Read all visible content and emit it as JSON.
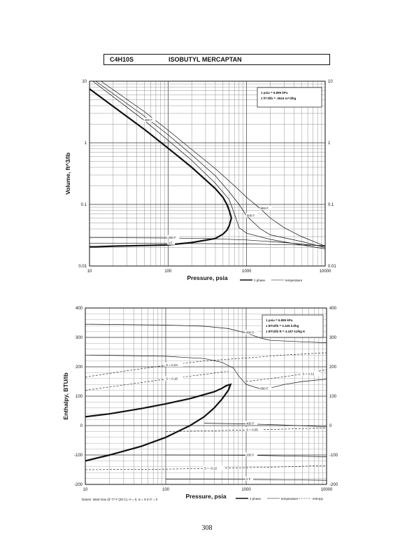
{
  "header": {
    "formula": "C4H10S",
    "name": "ISOBUTYL MERCAPTAN"
  },
  "page_number": "308",
  "footnote": "Datum: Ideal Gas @ 77 F (25 C), H = 0, S = S in F = 0",
  "legend": {
    "two_phase": "2 phase",
    "temperature": "temperature",
    "entropy": "entropy"
  },
  "chart_data": [
    {
      "type": "line",
      "xlabel": "Pressure, psia",
      "ylabel": "Volume, ft^3/lb",
      "x_scale": "log",
      "y_scale": "log",
      "xlim": [
        10,
        10000
      ],
      "ylim": [
        0.01,
        10
      ],
      "x_ticks": [
        "10",
        "100",
        "1000",
        "10000"
      ],
      "y_ticks": [
        "0.01",
        "0.1",
        "1",
        "10"
      ],
      "grid": true,
      "notes": [
        "1 psia = 6.895 kPa",
        "1 ft^3/lb = .0624 m^3/kg"
      ],
      "series": [
        {
          "name": "2 phase",
          "style": "bold",
          "x": [
            10,
            20,
            50,
            100,
            200,
            400,
            500,
            560,
            600,
            640,
            600,
            560,
            500,
            400,
            200,
            100,
            50,
            20,
            12,
            10
          ],
          "y": [
            7.5,
            3.9,
            1.65,
            0.82,
            0.4,
            0.18,
            0.13,
            0.1,
            0.08,
            0.06,
            0.045,
            0.038,
            0.033,
            0.028,
            0.024,
            0.022,
            0.0215,
            0.021,
            0.0205,
            0.0205
          ]
        },
        {
          "label": "800 F",
          "style": "thin",
          "x": [
            14,
            50,
            100,
            200,
            400,
            700,
            1000,
            1500,
            2000,
            3000,
            5000,
            10000
          ],
          "y": [
            10,
            3.2,
            1.6,
            0.78,
            0.38,
            0.2,
            0.13,
            0.085,
            0.06,
            0.042,
            0.03,
            0.021
          ]
        },
        {
          "label": "600 F",
          "style": "thin",
          "x": [
            12,
            50,
            100,
            200,
            400,
            600,
            800,
            1000,
            1500,
            2000,
            5000,
            10000
          ],
          "y": [
            10,
            2.7,
            1.35,
            0.64,
            0.29,
            0.16,
            0.1,
            0.065,
            0.04,
            0.032,
            0.025,
            0.02
          ]
        },
        {
          "label": "400 F",
          "style": "thin",
          "x": [
            11,
            50,
            100,
            200,
            400,
            600,
            700,
            800,
            1000,
            2000,
            5000,
            10000
          ],
          "y": [
            10,
            2.3,
            1.1,
            0.52,
            0.22,
            0.12,
            0.07,
            0.042,
            0.034,
            0.027,
            0.022,
            0.019
          ]
        },
        {
          "label": "200 F",
          "style": "thin",
          "x": [
            10,
            100,
            300,
            1000,
            3000,
            10000
          ],
          "y": [
            0.029,
            0.0285,
            0.028,
            0.0265,
            0.024,
            0.021
          ]
        },
        {
          "label": "0 F",
          "style": "thin",
          "x": [
            10,
            100,
            1000,
            10000
          ],
          "y": [
            0.0235,
            0.0233,
            0.0228,
            0.0215
          ]
        }
      ]
    },
    {
      "type": "line",
      "xlabel": "Pressure, psia",
      "ylabel": "Enthalpy, BTU/lb",
      "x_scale": "log",
      "y_scale": "linear",
      "xlim": [
        10,
        10000
      ],
      "ylim": [
        -200,
        400
      ],
      "x_ticks": [
        "10",
        "100",
        "1000",
        "10000"
      ],
      "y_ticks": [
        "-200",
        "-100",
        "0",
        "100",
        "200",
        "300",
        "400"
      ],
      "grid": true,
      "notes": [
        "1 psia = 6.895 kPa",
        "1 BTU/lb = 2.326 kJ/kg",
        "1 BTU/lb R = 4.187 kJ/kg K"
      ],
      "series": [
        {
          "name": "2 phase",
          "style": "bold",
          "x": [
            10,
            20,
            50,
            100,
            200,
            400,
            500,
            560,
            600,
            640,
            600,
            500,
            400,
            300,
            200,
            100,
            50,
            20,
            10
          ],
          "y": [
            30,
            40,
            58,
            74,
            92,
            115,
            127,
            135,
            138,
            140,
            120,
            90,
            60,
            30,
            0,
            -40,
            -70,
            -100,
            -120
          ]
        },
        {
          "label": "800 F",
          "style": "thin",
          "x": [
            10,
            100,
            300,
            600,
            1000,
            1500,
            2000,
            5000,
            10000
          ],
          "y": [
            345,
            342,
            338,
            330,
            315,
            298,
            290,
            285,
            282
          ]
        },
        {
          "label": "600 F",
          "style": "thin",
          "x": [
            10,
            100,
            300,
            500,
            700,
            800,
            1000,
            1500,
            2000,
            3000,
            5000,
            10000
          ],
          "y": [
            240,
            236,
            228,
            215,
            195,
            170,
            140,
            125,
            128,
            140,
            150,
            158
          ]
        },
        {
          "label": "400 F",
          "style": "thin",
          "x": [
            300,
            1000,
            3000,
            10000
          ],
          "y": [
            8,
            6,
            2,
            -4
          ]
        },
        {
          "label": "200 F",
          "style": "thin",
          "x": [
            100,
            1000,
            3000,
            10000
          ],
          "y": [
            -100,
            -101,
            -103,
            -106
          ]
        },
        {
          "label": "0 F",
          "style": "thin",
          "x": [
            100,
            1000,
            3000,
            10000
          ],
          "y": [
            -182,
            -183,
            -184,
            -186
          ]
        },
        {
          "label": "S = 0.24",
          "style": "dashed",
          "x": [
            10,
            30,
            100,
            300,
            1000,
            3000,
            10000
          ],
          "y": [
            165,
            185,
            205,
            220,
            230,
            240,
            248
          ]
        },
        {
          "label": "S = 0.18",
          "style": "dashed",
          "x": [
            10,
            30,
            100,
            300,
            600
          ],
          "y": [
            120,
            138,
            158,
            174,
            185
          ]
        },
        {
          "label": "S = 0.12",
          "style": "dashed",
          "x": [
            1000,
            2000,
            5000,
            10000
          ],
          "y": [
            150,
            160,
            175,
            190
          ]
        },
        {
          "label": "S = 0.05",
          "style": "dashed",
          "x": [
            100,
            300,
            1000,
            3000,
            10000
          ],
          "y": [
            -20,
            -18,
            -15,
            -12,
            -8
          ]
        },
        {
          "label": "S = -0.22",
          "style": "dashed",
          "x": [
            10,
            100,
            300,
            1000,
            3000,
            10000
          ],
          "y": [
            -150,
            -148,
            -146,
            -143,
            -140,
            -136
          ]
        }
      ]
    }
  ]
}
